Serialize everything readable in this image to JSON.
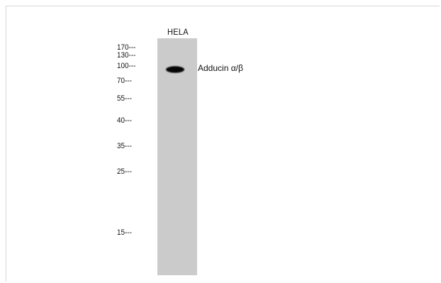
{
  "lane": {
    "label": "HELA"
  },
  "markers": [
    {
      "label": "170---",
      "kda": 170
    },
    {
      "label": "130---",
      "kda": 130
    },
    {
      "label": "100---",
      "kda": 100
    },
    {
      "label": "70---",
      "kda": 70
    },
    {
      "label": "55---",
      "kda": 55
    },
    {
      "label": "40---",
      "kda": 40
    },
    {
      "label": "35---",
      "kda": 35
    },
    {
      "label": "25---",
      "kda": 25
    },
    {
      "label": "15---",
      "kda": 15
    }
  ],
  "band": {
    "label": "Adducin α/β"
  },
  "colors": {
    "lane": "#cbcbcb",
    "band": "#111111",
    "background": "#ffffff"
  }
}
